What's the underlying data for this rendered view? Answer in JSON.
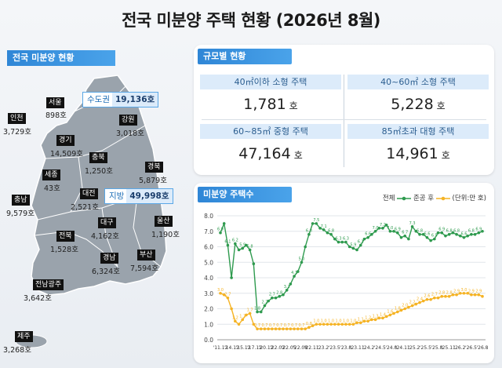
{
  "title": "전국 미분양 주택 현황  (2026년 8월)",
  "map": {
    "header": "전국 미분양 현황",
    "callouts": [
      {
        "key": "수도권",
        "value": "19,136호"
      },
      {
        "key": "지방",
        "value": "49,998호"
      }
    ],
    "regions": [
      {
        "name": "서울",
        "value": "898호"
      },
      {
        "name": "인천",
        "value": "3,729호"
      },
      {
        "name": "경기",
        "value": "14,509호"
      },
      {
        "name": "강원",
        "value": "3,018호"
      },
      {
        "name": "충북",
        "value": "1,250호"
      },
      {
        "name": "세종",
        "value": "43호"
      },
      {
        "name": "경북",
        "value": "5,879호"
      },
      {
        "name": "충남",
        "value": "9,579호"
      },
      {
        "name": "대전",
        "value": "2,521호"
      },
      {
        "name": "대구",
        "value": "4,162호"
      },
      {
        "name": "울산",
        "value": "1,190호"
      },
      {
        "name": "전북",
        "value": "1,528호"
      },
      {
        "name": "경남",
        "value": "6,324호"
      },
      {
        "name": "부산",
        "value": "7,594호"
      },
      {
        "name": "전남광주",
        "value": "3,642호"
      },
      {
        "name": "제주",
        "value": "3,268호"
      }
    ]
  },
  "size_panel": {
    "header": "규모별 현황",
    "unit": "호",
    "cells": [
      {
        "label": "40㎡이하 소형 주택",
        "value": "1,781"
      },
      {
        "label": "40~60㎡ 소형 주택",
        "value": "5,228"
      },
      {
        "label": "60~85㎡ 중형 주택",
        "value": "47,164"
      },
      {
        "label": "85㎡초과 대형 주택",
        "value": "14,961"
      }
    ]
  },
  "chart_panel": {
    "header": "미분양 주택수",
    "legend": {
      "total": "전체",
      "after": "준공 후",
      "unit": "(단위:만 호)"
    }
  },
  "colors": {
    "accent": "#2f86d6",
    "total": "#2e9a4e",
    "after": "#f5b324",
    "cell_bg": "#dcebfa"
  },
  "chart_data": {
    "type": "line",
    "title": "미분양 주택수",
    "unit": "만 호",
    "ylim": [
      0,
      8.0
    ],
    "yticks": [
      0,
      1.0,
      2.0,
      3.0,
      4.0,
      5.0,
      6.0,
      7.0,
      8.0
    ],
    "x_labels": [
      "'11.12",
      "'14.12",
      "'15.12",
      "'17.12",
      "'20.12",
      "'22.02",
      "'22.05",
      "'22.08",
      "'22.11",
      "'23.2",
      "'23.5",
      "'23.8",
      "'23.11",
      "'24.2",
      "'24.5",
      "'24.8",
      "'24.11",
      "'25.2",
      "'25.5",
      "'25.8",
      "'25.11",
      "'26.2",
      "'26.5",
      "'26.8"
    ],
    "grid": true,
    "legend_position": "top-right",
    "series": [
      {
        "name": "전체",
        "values": [
          6.9,
          7.5,
          6.1,
          4.0,
          6.2,
          5.8,
          5.9,
          6.1,
          5.8,
          4.9,
          1.8,
          1.8,
          2.2,
          2.5,
          2.7,
          2.7,
          2.8,
          2.9,
          3.2,
          3.6,
          4.1,
          4.4,
          5.0,
          6.0,
          6.8,
          7.5,
          7.5,
          7.2,
          7.1,
          6.9,
          6.8,
          6.5,
          6.3,
          6.3,
          6.3,
          6.0,
          5.9,
          5.8,
          6.1,
          6.5,
          6.6,
          6.8,
          7.0,
          7.2,
          7.2,
          7.4,
          7.0,
          7.0,
          6.9,
          6.6,
          6.7,
          6.5,
          7.3,
          7.0,
          6.8,
          6.8,
          6.6,
          6.4,
          6.5,
          6.9,
          6.9,
          6.7,
          6.8,
          6.9,
          6.8,
          6.7,
          6.6,
          6.7,
          6.8,
          6.8,
          6.9,
          7.0
        ]
      },
      {
        "name": "준공 후",
        "values": [
          3.0,
          2.9,
          2.7,
          2.0,
          1.2,
          1.0,
          1.3,
          1.6,
          1.7,
          1.0,
          0.7,
          0.7,
          0.7,
          0.7,
          0.7,
          0.7,
          0.7,
          0.7,
          0.7,
          0.7,
          0.7,
          0.7,
          0.7,
          0.7,
          0.8,
          0.9,
          1.0,
          1.0,
          1.0,
          1.0,
          1.0,
          1.0,
          1.0,
          1.0,
          1.0,
          1.0,
          1.0,
          1.1,
          1.1,
          1.2,
          1.2,
          1.3,
          1.3,
          1.4,
          1.4,
          1.5,
          1.6,
          1.7,
          1.8,
          1.9,
          2.0,
          2.1,
          2.2,
          2.3,
          2.4,
          2.5,
          2.6,
          2.6,
          2.7,
          2.7,
          2.8,
          2.8,
          2.8,
          2.9,
          2.9,
          3.0,
          3.0,
          3.0,
          2.9,
          2.9,
          2.9,
          2.8
        ]
      }
    ]
  }
}
